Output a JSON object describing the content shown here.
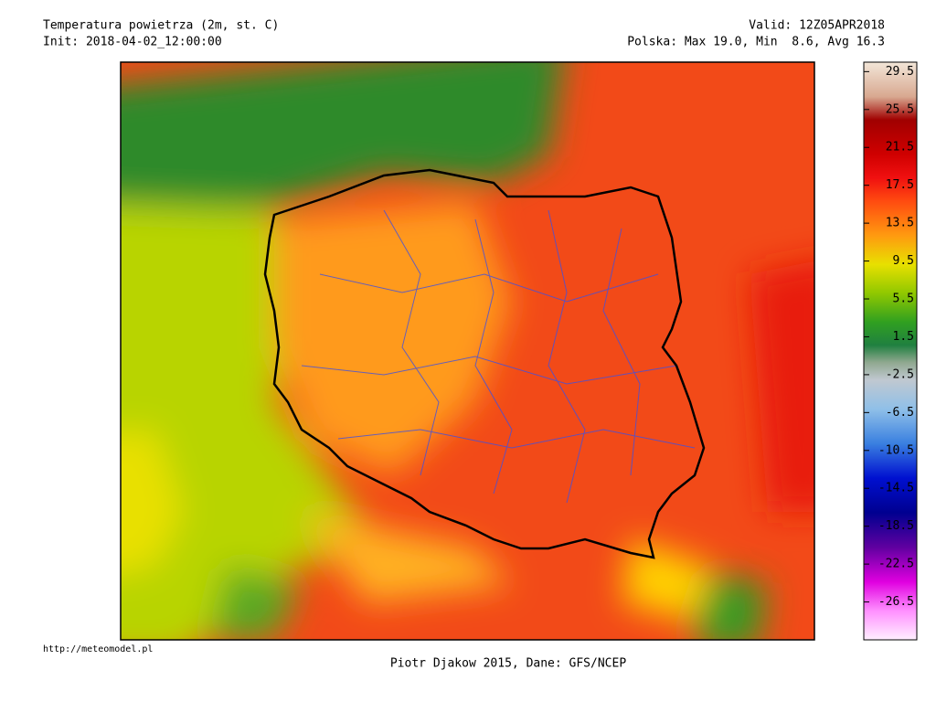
{
  "header": {
    "title": "Temperatura powietrza (2m, st. C)",
    "init": "Init: 2018-04-02_12:00:00",
    "valid": "Valid: 12Z05APR2018",
    "stats": "Polska: Max 19.0, Min  8.6, Avg 16.3"
  },
  "colorbar": {
    "lim": [
      -30.5,
      30.5
    ],
    "ticks": [
      29.5,
      25.5,
      21.5,
      17.5,
      13.5,
      9.5,
      5.5,
      1.5,
      -2.5,
      -6.5,
      -10.5,
      -14.5,
      -18.5,
      -22.5,
      -26.5
    ]
  },
  "footer": {
    "url": "http://meteomodel.pl",
    "credit": "Piotr Djakow 2015, Dane: GFS/NCEP"
  }
}
